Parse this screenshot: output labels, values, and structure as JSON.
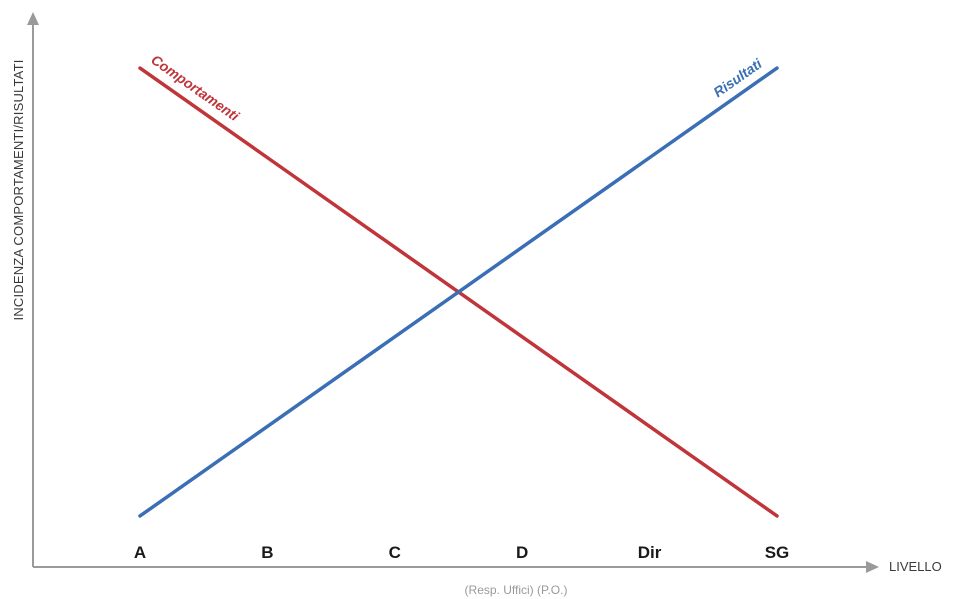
{
  "chart_data": {
    "type": "line",
    "title": "",
    "ylabel": "INCIDENZA COMPORTAMENTI/RISULTATI",
    "xlabel": "LIVELLO",
    "subtitle": "(Resp. Uffici) (P.O.)",
    "categories": [
      "A",
      "B",
      "C",
      "D",
      "Dir",
      "SG"
    ],
    "ylim": [
      0,
      100
    ],
    "grid": false,
    "legend": "inline",
    "series": [
      {
        "name": "Comportamenti",
        "color": "#c0353a",
        "values": [
          88,
          72.2,
          56.4,
          40.6,
          24.8,
          9
        ]
      },
      {
        "name": "Risultati",
        "color": "#3a6fb5",
        "values": [
          9,
          24.8,
          40.6,
          56.4,
          72.2,
          88
        ]
      }
    ]
  }
}
